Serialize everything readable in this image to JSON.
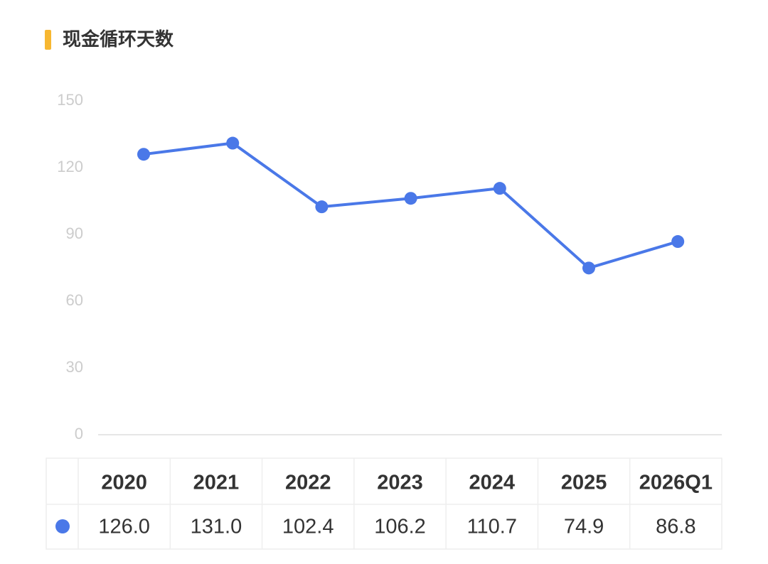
{
  "chart_data": {
    "type": "line",
    "title": "现金循环天数",
    "categories": [
      "2020",
      "2021",
      "2022",
      "2023",
      "2024",
      "2025",
      "2026Q1"
    ],
    "values": [
      126.0,
      131.0,
      102.4,
      106.2,
      110.7,
      74.9,
      86.8
    ],
    "value_labels": [
      "126.0",
      "131.0",
      "102.4",
      "106.2",
      "110.7",
      "74.9",
      "86.8"
    ],
    "color": "#4a78e8",
    "ylim": [
      0,
      150
    ],
    "yticks": [
      0,
      30,
      60,
      90,
      120,
      150
    ],
    "grid": false
  }
}
